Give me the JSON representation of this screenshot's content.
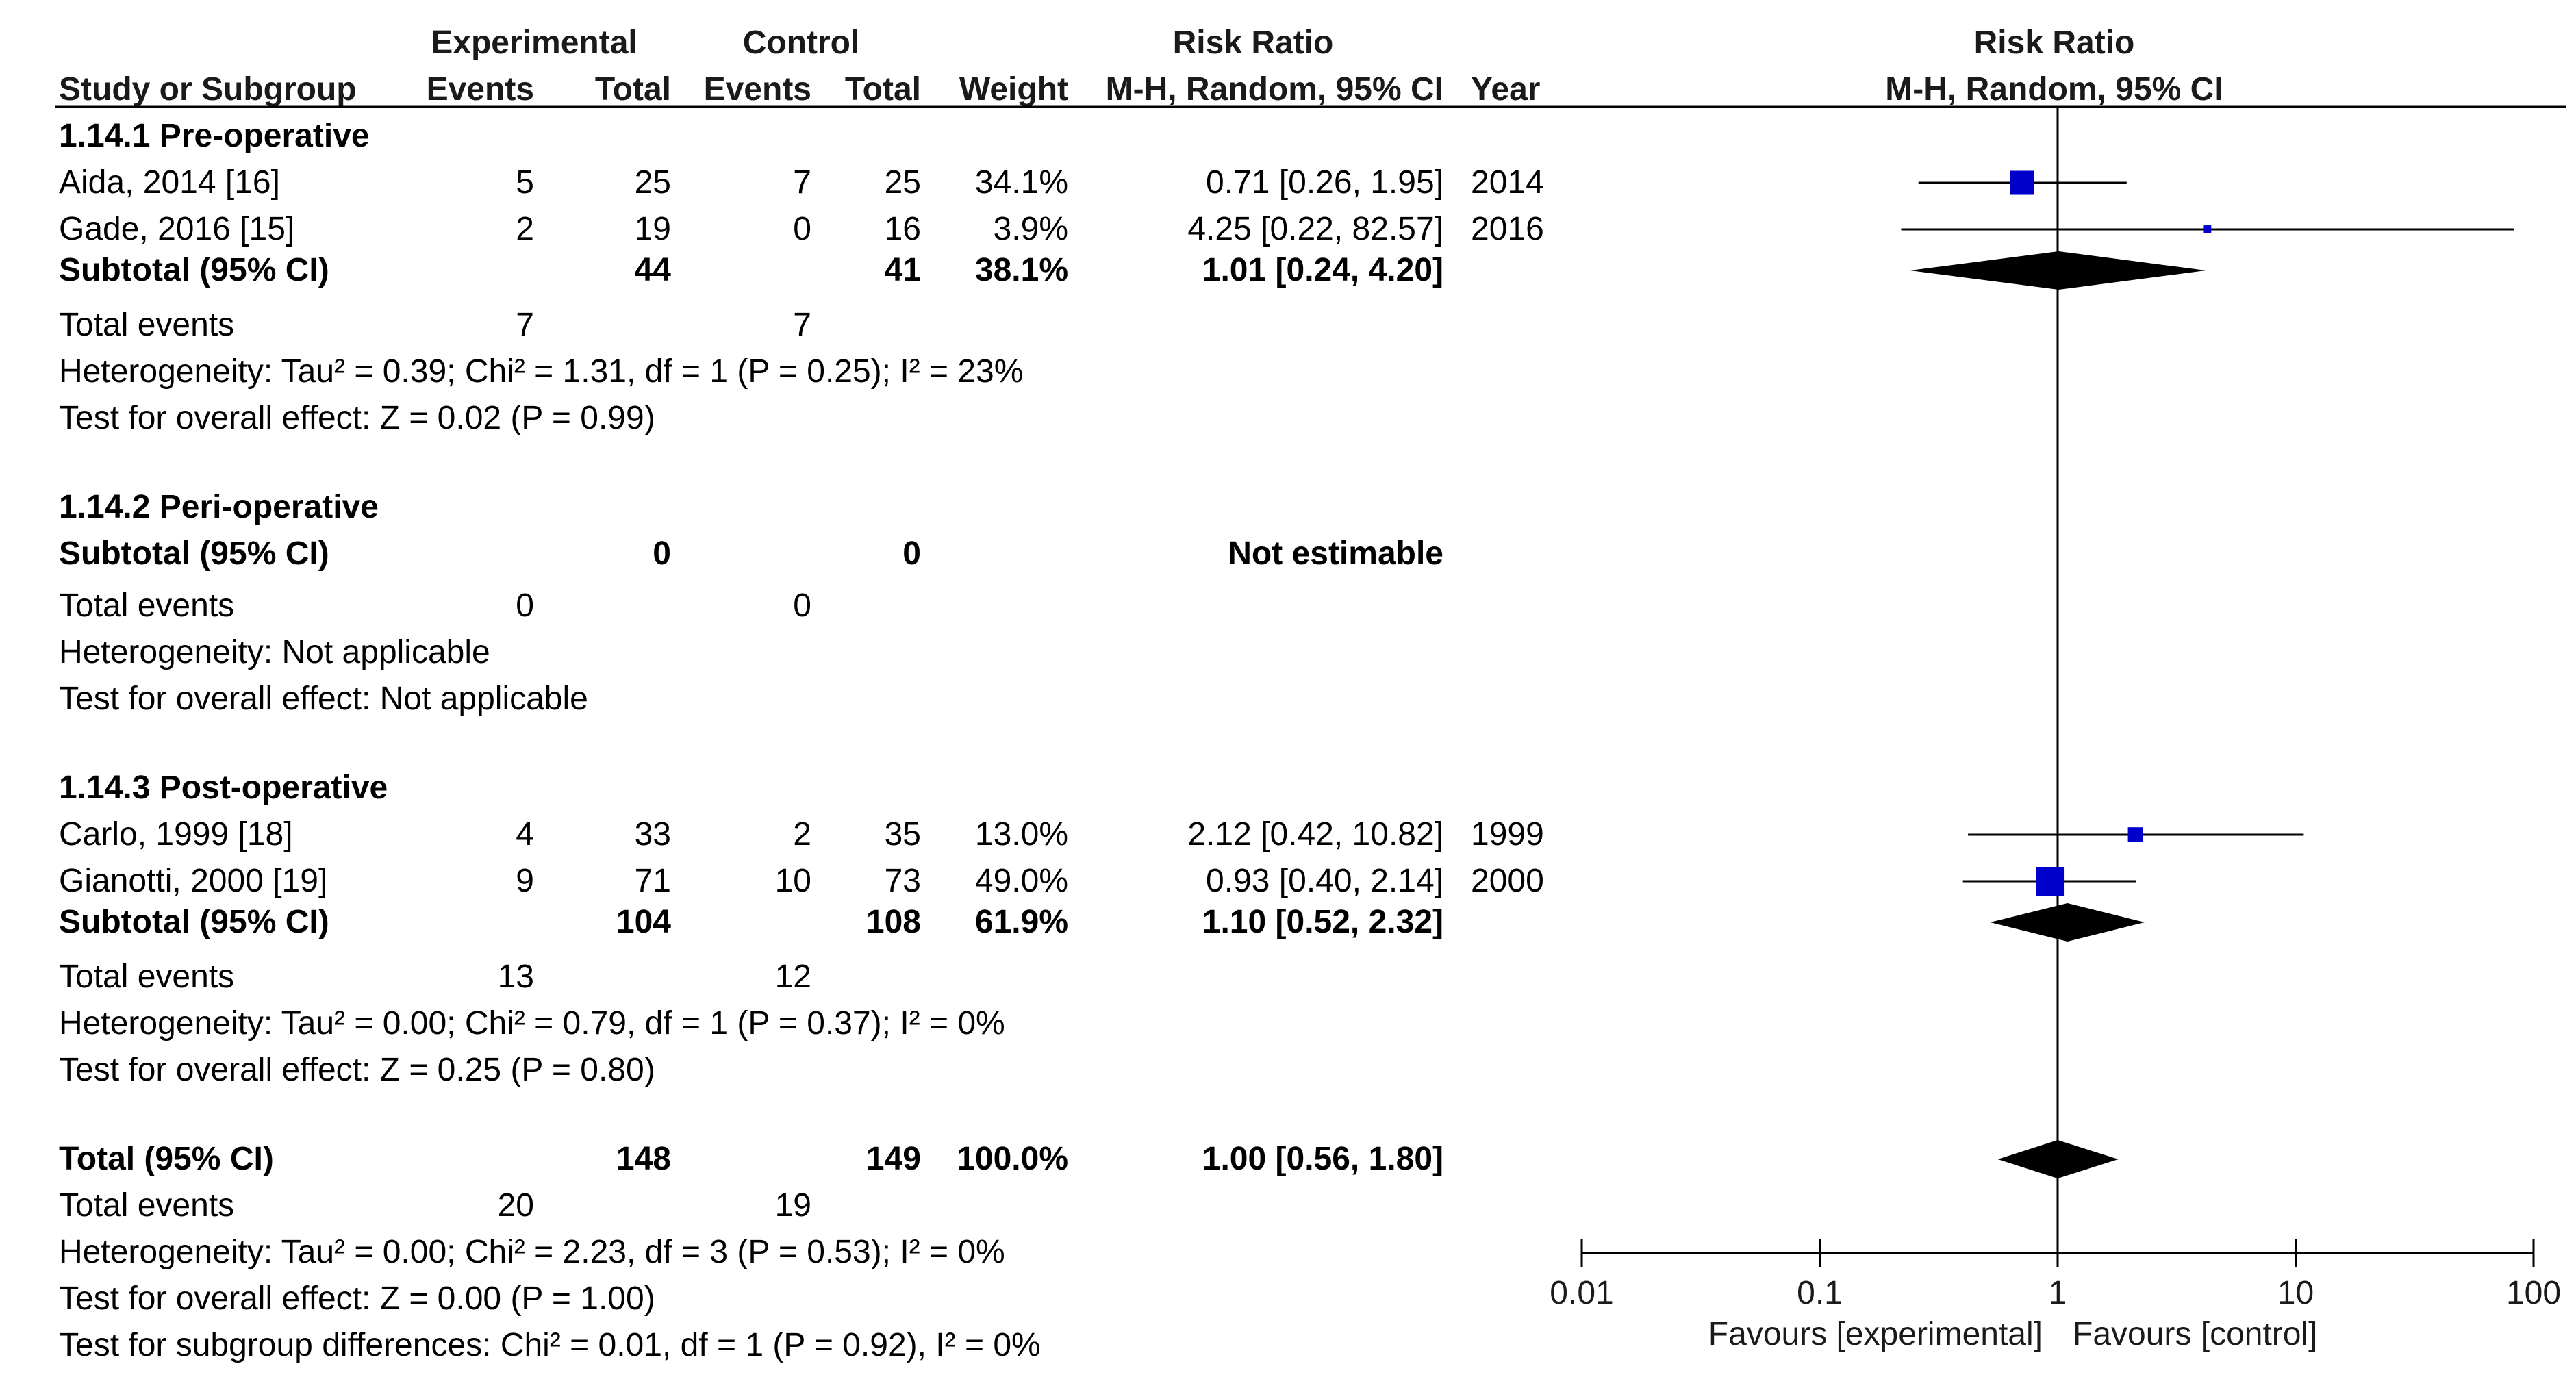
{
  "headers": {
    "experimental": "Experimental",
    "control": "Control",
    "risk_ratio": "Risk Ratio",
    "risk_ratio_plot": "Risk Ratio",
    "study": "Study or Subgroup",
    "events_e": "Events",
    "total_e": "Total",
    "events_c": "Events",
    "total_c": "Total",
    "weight": "Weight",
    "method": "M-H, Random, 95% CI",
    "year": "Year",
    "method_plot": "M-H, Random, 95% CI"
  },
  "rows": [
    {
      "kind": "group",
      "name": "1.14.1 Pre-operative"
    },
    {
      "kind": "study",
      "name": "Aida, 2014 [16]",
      "ee": "5",
      "te": "25",
      "ec": "7",
      "tc": "25",
      "w": "34.1%",
      "ci": "0.71 [0.26, 1.95]",
      "year": "2014"
    },
    {
      "kind": "study",
      "name": "Gade, 2016 [15]",
      "ee": "2",
      "te": "19",
      "ec": "0",
      "tc": "16",
      "w": "3.9%",
      "ci": "4.25 [0.22, 82.57]",
      "year": "2016"
    },
    {
      "kind": "subtotal",
      "name": "Subtotal (95% CI)",
      "te": "44",
      "tc": "41",
      "w": "38.1%",
      "ci": "1.01 [0.24, 4.20]"
    },
    {
      "kind": "events",
      "name": "Total events",
      "ee": "7",
      "ec": "7"
    },
    {
      "kind": "text",
      "name": "Heterogeneity: Tau² = 0.39; Chi² = 1.31, df = 1 (P = 0.25); I² = 23%"
    },
    {
      "kind": "text",
      "name": "Test for overall effect: Z = 0.02 (P = 0.99)"
    },
    {
      "kind": "group",
      "name": "1.14.2 Peri-operative"
    },
    {
      "kind": "subtotal",
      "name": "Subtotal (95% CI)",
      "te": "0",
      "tc": "0",
      "w": "",
      "ci": "Not estimable"
    },
    {
      "kind": "events",
      "name": "Total events",
      "ee": "0",
      "ec": "0"
    },
    {
      "kind": "text",
      "name": "Heterogeneity: Not applicable"
    },
    {
      "kind": "text",
      "name": "Test for overall effect: Not applicable"
    },
    {
      "kind": "group",
      "name": "1.14.3 Post-operative"
    },
    {
      "kind": "study",
      "name": "Carlo, 1999 [18]",
      "ee": "4",
      "te": "33",
      "ec": "2",
      "tc": "35",
      "w": "13.0%",
      "ci": "2.12 [0.42, 10.82]",
      "year": "1999"
    },
    {
      "kind": "study",
      "name": "Gianotti, 2000 [19]",
      "ee": "9",
      "te": "71",
      "ec": "10",
      "tc": "73",
      "w": "49.0%",
      "ci": "0.93 [0.40, 2.14]",
      "year": "2000"
    },
    {
      "kind": "subtotal",
      "name": "Subtotal (95% CI)",
      "te": "104",
      "tc": "108",
      "w": "61.9%",
      "ci": "1.10 [0.52, 2.32]"
    },
    {
      "kind": "events",
      "name": "Total events",
      "ee": "13",
      "ec": "12"
    },
    {
      "kind": "text",
      "name": "Heterogeneity: Tau² = 0.00; Chi² = 0.79, df = 1 (P = 0.37); I² = 0%"
    },
    {
      "kind": "text",
      "name": "Test for overall effect: Z = 0.25 (P = 0.80)"
    },
    {
      "kind": "subtotal",
      "name": "Total (95% CI)",
      "te": "148",
      "tc": "149",
      "w": "100.0%",
      "ci": "1.00 [0.56, 1.80]"
    },
    {
      "kind": "events",
      "name": "Total events",
      "ee": "20",
      "ec": "19"
    },
    {
      "kind": "text",
      "name": "Heterogeneity: Tau² = 0.00; Chi² = 2.23, df = 3 (P = 0.53); I² = 0%"
    },
    {
      "kind": "text",
      "name": "Test for overall effect: Z = 0.00 (P = 1.00)"
    },
    {
      "kind": "text",
      "name": "Test for subgroup differences: Chi² = 0.01, df = 1 (P = 0.92), I² = 0%"
    }
  ],
  "chart_data": {
    "type": "forest",
    "scale": "log",
    "xlim": [
      0.01,
      100
    ],
    "reference_line": 1,
    "ticks": [
      {
        "value": 0.01,
        "label": "0.01"
      },
      {
        "value": 0.1,
        "label": "0.1"
      },
      {
        "value": 1,
        "label": "1"
      },
      {
        "value": 10,
        "label": "10"
      },
      {
        "value": 100,
        "label": "100"
      }
    ],
    "favours_left": "Favours [experimental]",
    "favours_right": "Favours [control]",
    "studies": [
      {
        "name": "Aida, 2014",
        "rr": 0.71,
        "lo": 0.26,
        "hi": 1.95,
        "weight": 34.1,
        "row": 1
      },
      {
        "name": "Gade, 2016",
        "rr": 4.25,
        "lo": 0.22,
        "hi": 82.57,
        "weight": 3.9,
        "row": 2
      },
      {
        "name": "Carlo, 1999",
        "rr": 2.12,
        "lo": 0.42,
        "hi": 10.82,
        "weight": 13.0,
        "row": 13
      },
      {
        "name": "Gianotti, 2000",
        "rr": 0.93,
        "lo": 0.4,
        "hi": 2.14,
        "weight": 49.0,
        "row": 14
      }
    ],
    "diamonds": [
      {
        "name": "Subtotal Pre-operative",
        "rr": 1.01,
        "lo": 0.24,
        "hi": 4.2,
        "row": 3
      },
      {
        "name": "Subtotal Post-operative",
        "rr": 1.1,
        "lo": 0.52,
        "hi": 2.32,
        "row": 15
      },
      {
        "name": "Total",
        "rr": 1.0,
        "lo": 0.56,
        "hi": 1.8,
        "row": 19
      }
    ],
    "colors": {
      "study": "#0000cc",
      "diamond": "#000000",
      "line": "#000000"
    }
  }
}
